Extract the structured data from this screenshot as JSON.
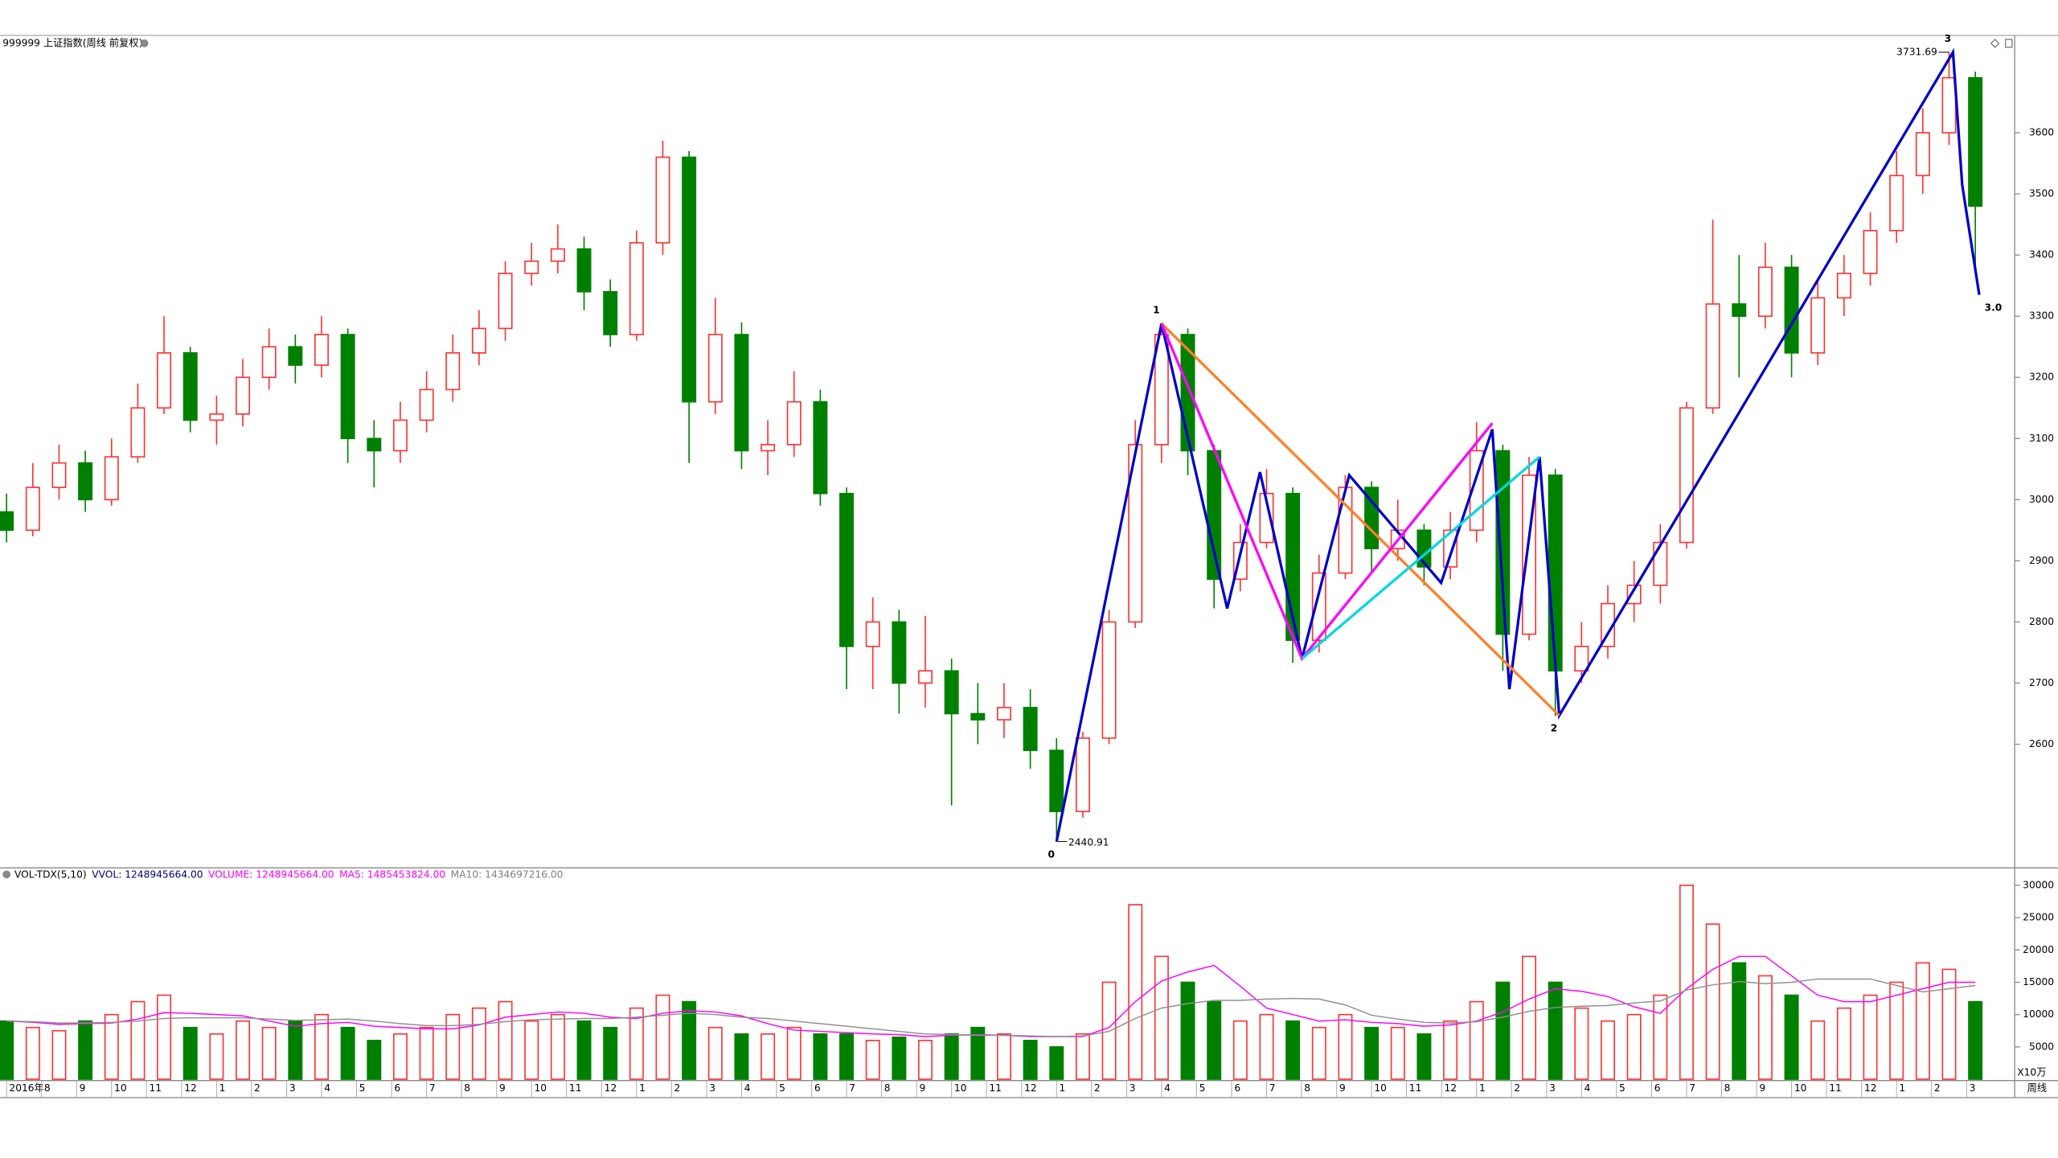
{
  "chart_data": [
    {
      "type": "candlestick",
      "title": "999999 上证指数(周线 前复权)",
      "open": [
        2980,
        2950,
        3020,
        3060,
        3000,
        3070,
        3150,
        3240,
        3130,
        3140,
        3200,
        3250,
        3220,
        3270,
        3100,
        3080,
        3130,
        3180,
        3240,
        3280,
        3370,
        3390,
        3410,
        3340,
        3270,
        3420,
        3560,
        3160,
        3270,
        3080,
        3090,
        3160,
        3010,
        2760,
        2800,
        2700,
        2720,
        2650,
        2640,
        2660,
        2590,
        2490,
        2610,
        2800,
        3090,
        3270,
        3080,
        2870,
        2930,
        3010,
        2770,
        2880,
        3020,
        2920,
        2950,
        2890,
        2950,
        3080,
        2780,
        3040,
        2720,
        2760,
        2830,
        2860,
        2930,
        3150,
        3320,
        3300,
        3380,
        3240,
        3330,
        3370,
        3440,
        3530,
        3600,
        3690
      ],
      "high": [
        3010,
        3060,
        3090,
        3080,
        3100,
        3190,
        3300,
        3250,
        3170,
        3230,
        3280,
        3270,
        3300,
        3280,
        3130,
        3160,
        3210,
        3270,
        3310,
        3390,
        3420,
        3450,
        3430,
        3360,
        3440,
        3587,
        3570,
        3330,
        3290,
        3130,
        3210,
        3180,
        3020,
        2840,
        2820,
        2810,
        2740,
        2700,
        2700,
        2690,
        2610,
        2620,
        2820,
        3130,
        3288,
        3280,
        3090,
        2960,
        3050,
        3020,
        2910,
        3040,
        3030,
        3000,
        2960,
        2980,
        3127,
        3090,
        3070,
        3050,
        2800,
        2860,
        2900,
        2960,
        3160,
        3458,
        3400,
        3420,
        3400,
        3360,
        3400,
        3470,
        3570,
        3640,
        3731.69,
        3700
      ],
      "low": [
        2930,
        2940,
        3000,
        2980,
        2990,
        3060,
        3140,
        3110,
        3090,
        3120,
        3180,
        3190,
        3200,
        3060,
        3020,
        3060,
        3110,
        3160,
        3220,
        3260,
        3350,
        3370,
        3310,
        3250,
        3260,
        3400,
        3060,
        3140,
        3050,
        3040,
        3070,
        2990,
        2690,
        2690,
        2650,
        2660,
        2500,
        2600,
        2610,
        2560,
        2440.91,
        2480,
        2600,
        2790,
        3060,
        3040,
        2822,
        2850,
        2920,
        2733,
        2750,
        2870,
        2880,
        2900,
        2860,
        2870,
        2930,
        2720,
        2770,
        2646,
        2700,
        2740,
        2800,
        2830,
        2920,
        3140,
        3200,
        3280,
        3200,
        3220,
        3300,
        3350,
        3420,
        3500,
        3580,
        3380
      ],
      "close": [
        2950,
        3020,
        3060,
        3000,
        3070,
        3150,
        3240,
        3130,
        3140,
        3200,
        3250,
        3220,
        3270,
        3100,
        3080,
        3130,
        3180,
        3240,
        3280,
        3370,
        3390,
        3410,
        3340,
        3270,
        3420,
        3560,
        3160,
        3270,
        3080,
        3090,
        3160,
        3010,
        2760,
        2800,
        2700,
        2720,
        2650,
        2640,
        2660,
        2590,
        2490,
        2610,
        2800,
        3090,
        3270,
        3080,
        2870,
        2930,
        3010,
        2770,
        2880,
        3020,
        2920,
        2950,
        2890,
        2950,
        3080,
        2780,
        3040,
        2720,
        2760,
        2830,
        2860,
        2930,
        3150,
        3320,
        3300,
        3380,
        3240,
        3330,
        3370,
        3440,
        3530,
        3600,
        3690,
        3480
      ],
      "up_color": "#ff3232",
      "down_color": "#008000",
      "xlim": [
        -0.25,
        76.5
      ],
      "ylim": [
        2400,
        3757
      ],
      "yticks": [
        2600,
        2700,
        2800,
        2900,
        3000,
        3100,
        3200,
        3300,
        3400,
        3500,
        3600
      ],
      "overlays": [
        {
          "color": "#0000cc",
          "x": [
            40,
            44,
            46.5,
            47.75,
            49.35,
            51.15,
            54.65,
            56.6,
            57.25,
            58.4,
            59.15,
            74.15,
            74.5,
            75.15
          ],
          "y": [
            2440.91,
            3288,
            2822,
            3045,
            2740,
            3040,
            2864,
            3115,
            2690,
            3070,
            2647,
            3731.69,
            3515,
            3335
          ],
          "point_labels": [
            "0",
            "1",
            null,
            null,
            null,
            null,
            null,
            null,
            null,
            null,
            "2",
            "3",
            null,
            "3.0"
          ]
        },
        {
          "color": "#ff7f27",
          "x": [
            44,
            59.15
          ],
          "y": [
            3288,
            2647
          ]
        },
        {
          "color": "#ff00ff",
          "x": [
            44,
            49.35,
            56.6
          ],
          "y": [
            3288,
            2740,
            3125
          ]
        },
        {
          "color": "#00d8e0",
          "x": [
            49.35,
            58.4
          ],
          "y": [
            2740,
            3070
          ]
        }
      ]
    },
    {
      "type": "bar",
      "title": [
        {
          "text": "VOL-TDX(5,10)",
          "color": "#000000"
        },
        {
          "text": "VVOL: 1248945664.00",
          "color": "#000080"
        },
        {
          "text": "VOLUME: 1248945664.00",
          "color": "#ff00ff"
        },
        {
          "text": "MA5: 1485453824.00",
          "color": "#ff00ff"
        },
        {
          "text": "MA10: 1434697216.00",
          "color": "#808080"
        }
      ],
      "values": [
        9000,
        8000,
        7500,
        9000,
        10000,
        12000,
        13000,
        8000,
        7000,
        9000,
        8000,
        9000,
        10000,
        8000,
        6000,
        7000,
        8000,
        10000,
        11000,
        12000,
        9000,
        10000,
        9000,
        8000,
        11000,
        13000,
        12000,
        8000,
        7000,
        7000,
        8000,
        7000,
        7000,
        6000,
        6500,
        6000,
        7000,
        8000,
        7000,
        6000,
        5000,
        7000,
        15000,
        27000,
        19000,
        15000,
        12000,
        9000,
        10000,
        9000,
        8000,
        10000,
        8000,
        8000,
        7000,
        9000,
        12000,
        15000,
        19000,
        15000,
        11000,
        9000,
        10000,
        13000,
        30000,
        24000,
        18000,
        16000,
        13000,
        9000,
        11000,
        13000,
        15000,
        18000,
        17000,
        12000
      ],
      "series": [
        {
          "name": "MA5",
          "color": "#ff00ff",
          "values": [
            9000,
            8800,
            8500,
            8600,
            8700,
            9300,
            10300,
            10200,
            10000,
            9800,
            9000,
            8200,
            8600,
            8800,
            8200,
            8000,
            7800,
            7800,
            8400,
            9600,
            10000,
            10400,
            10200,
            9600,
            9400,
            10200,
            10600,
            10400,
            9800,
            8600,
            7600,
            7400,
            7200,
            7000,
            6900,
            6600,
            6800,
            6900,
            6800,
            6600,
            6600,
            6600,
            8000,
            12000,
            15200,
            16600,
            17600,
            14400,
            11000,
            10000,
            9000,
            9200,
            8800,
            8600,
            8200,
            8400,
            9000,
            10400,
            12400,
            14000,
            13600,
            12800,
            11200,
            10200,
            14000,
            17000,
            19000,
            19000,
            16000,
            13000,
            12000,
            12000,
            13000,
            14000,
            15000,
            15000
          ]
        },
        {
          "name": "MA10",
          "color": "#909090",
          "values": [
            9000,
            8900,
            8700,
            8700,
            8800,
            9000,
            9400,
            9500,
            9500,
            9500,
            9300,
            9100,
            9200,
            9300,
            9000,
            8600,
            8300,
            8300,
            8500,
            8900,
            9200,
            9300,
            9400,
            9400,
            9600,
            9900,
            10200,
            10000,
            9600,
            9400,
            9000,
            8600,
            8200,
            7800,
            7400,
            7000,
            6900,
            6800,
            6800,
            6700,
            6600,
            6700,
            7400,
            9400,
            11000,
            11700,
            12200,
            12200,
            12400,
            12500,
            12400,
            11500,
            9900,
            9300,
            8800,
            8700,
            8900,
            9600,
            10500,
            11100,
            11300,
            11400,
            11800,
            12100,
            13800,
            14600,
            15100,
            14800,
            15000,
            15500,
            15500,
            15500,
            14500,
            13500,
            14000,
            14500
          ]
        }
      ],
      "ylim": [
        0,
        32500
      ],
      "yticks": [
        5000,
        10000,
        15000,
        20000,
        25000,
        30000
      ],
      "unit": "X10万",
      "period": "周线",
      "xlim": [
        -0.25,
        76.5
      ],
      "xticks": [
        {
          "value": 0,
          "label": "2016年"
        },
        {
          "value": 1.33,
          "label": "8"
        },
        {
          "value": 2.67,
          "label": "9"
        },
        {
          "value": 4,
          "label": "10"
        },
        {
          "value": 5.33,
          "label": "11"
        },
        {
          "value": 6.67,
          "label": "12"
        },
        {
          "value": 8,
          "label": "1"
        },
        {
          "value": 9.33,
          "label": "2"
        },
        {
          "value": 10.67,
          "label": "3"
        },
        {
          "value": 12,
          "label": "4"
        },
        {
          "value": 13.33,
          "label": "5"
        },
        {
          "value": 14.67,
          "label": "6"
        },
        {
          "value": 16,
          "label": "7"
        },
        {
          "value": 17.33,
          "label": "8"
        },
        {
          "value": 18.67,
          "label": "9"
        },
        {
          "value": 20,
          "label": "10"
        },
        {
          "value": 21.33,
          "label": "11"
        },
        {
          "value": 22.67,
          "label": "12"
        },
        {
          "value": 24,
          "label": "1"
        },
        {
          "value": 25.33,
          "label": "2"
        },
        {
          "value": 26.67,
          "label": "3"
        },
        {
          "value": 28,
          "label": "4"
        },
        {
          "value": 29.33,
          "label": "5"
        },
        {
          "value": 30.67,
          "label": "6"
        },
        {
          "value": 32,
          "label": "7"
        },
        {
          "value": 33.33,
          "label": "8"
        },
        {
          "value": 34.67,
          "label": "9"
        },
        {
          "value": 36,
          "label": "10"
        },
        {
          "value": 37.33,
          "label": "11"
        },
        {
          "value": 38.67,
          "label": "12"
        },
        {
          "value": 40,
          "label": "1"
        },
        {
          "value": 41.33,
          "label": "2"
        },
        {
          "value": 42.67,
          "label": "3"
        },
        {
          "value": 44,
          "label": "4"
        },
        {
          "value": 45.33,
          "label": "5"
        },
        {
          "value": 46.67,
          "label": "6"
        },
        {
          "value": 48,
          "label": "7"
        },
        {
          "value": 49.33,
          "label": "8"
        },
        {
          "value": 50.67,
          "label": "9"
        },
        {
          "value": 52,
          "label": "10"
        },
        {
          "value": 53.33,
          "label": "11"
        },
        {
          "value": 54.67,
          "label": "12"
        },
        {
          "value": 56,
          "label": "1"
        },
        {
          "value": 57.33,
          "label": "2"
        },
        {
          "value": 58.67,
          "label": "3"
        },
        {
          "value": 60,
          "label": "4"
        },
        {
          "value": 61.33,
          "label": "5"
        },
        {
          "value": 62.67,
          "label": "6"
        },
        {
          "value": 64,
          "label": "7"
        },
        {
          "value": 65.33,
          "label": "8"
        },
        {
          "value": 66.67,
          "label": "9"
        },
        {
          "value": 68,
          "label": "10"
        },
        {
          "value": 69.33,
          "label": "11"
        },
        {
          "value": 70.67,
          "label": "12"
        },
        {
          "value": 72,
          "label": "1"
        },
        {
          "value": 73.33,
          "label": "2"
        },
        {
          "value": 74.67,
          "label": "3"
        }
      ]
    }
  ]
}
